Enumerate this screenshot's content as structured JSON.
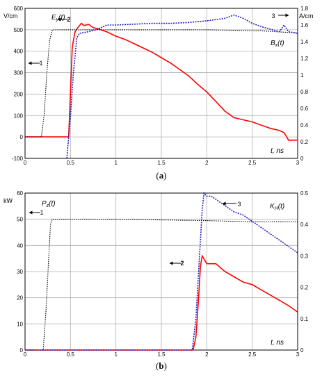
{
  "chart_data": [
    {
      "type": "line",
      "caption_open": "(",
      "caption_letter": "a",
      "caption_close": ")",
      "left_unit": "V/cm",
      "right_unit": "A/cm",
      "x_axis_text": "t, ns",
      "left_ylim": [
        -100,
        600
      ],
      "right_ylim": [
        0,
        1.8
      ],
      "xlim": [
        0,
        3
      ],
      "x_ticks": [
        "0",
        "0.5",
        "1",
        "1.5",
        "2",
        "2.5",
        "3"
      ],
      "left_ticks": [
        "600",
        "500",
        "400",
        "300",
        "200",
        "100",
        "0",
        "-100"
      ],
      "right_ticks": [
        "1.8",
        "1.6",
        "1.4",
        "1.2",
        "1",
        "0.8",
        "0.6",
        "0.4",
        "0.2",
        "0"
      ],
      "grid": true,
      "series": [
        {
          "name": "Ey(t)",
          "label_main": "E",
          "label_sub": "y",
          "label_tail": "(t)",
          "number": "2",
          "axis": "left",
          "style": "solid",
          "color": "#ff0000",
          "points": [
            [
              0,
              0
            ],
            [
              0.48,
              0
            ],
            [
              0.5,
              200
            ],
            [
              0.52,
              420
            ],
            [
              0.55,
              490
            ],
            [
              0.58,
              510
            ],
            [
              0.62,
              530
            ],
            [
              0.65,
              520
            ],
            [
              0.7,
              525
            ],
            [
              0.75,
              510
            ],
            [
              0.8,
              505
            ],
            [
              0.9,
              490
            ],
            [
              1.0,
              470
            ],
            [
              1.1,
              455
            ],
            [
              1.2,
              435
            ],
            [
              1.3,
              415
            ],
            [
              1.4,
              395
            ],
            [
              1.5,
              370
            ],
            [
              1.6,
              345
            ],
            [
              1.7,
              315
            ],
            [
              1.8,
              285
            ],
            [
              1.9,
              245
            ],
            [
              2.0,
              210
            ],
            [
              2.1,
              165
            ],
            [
              2.2,
              120
            ],
            [
              2.3,
              90
            ],
            [
              2.4,
              80
            ],
            [
              2.5,
              70
            ],
            [
              2.6,
              55
            ],
            [
              2.7,
              40
            ],
            [
              2.8,
              30
            ],
            [
              2.85,
              20
            ],
            [
              2.88,
              0
            ],
            [
              2.9,
              -15
            ],
            [
              3.0,
              -15
            ]
          ]
        },
        {
          "name": "1",
          "number": "1",
          "axis": "left",
          "style": "dotted-black",
          "color": "#000000",
          "points": [
            [
              0,
              0
            ],
            [
              0.18,
              0
            ],
            [
              0.21,
              100
            ],
            [
              0.24,
              300
            ],
            [
              0.27,
              450
            ],
            [
              0.3,
              500
            ],
            [
              1.0,
              500
            ],
            [
              2.0,
              500
            ],
            [
              2.6,
              495
            ],
            [
              3.0,
              485
            ]
          ]
        },
        {
          "name": "Bx(t)",
          "label_main": "B",
          "label_sub": "x",
          "label_tail": "(t)",
          "number": "3",
          "axis": "right",
          "style": "dotted-blue",
          "color": "#1f1fbf",
          "points": [
            [
              0.46,
              0
            ],
            [
              0.5,
              0.5
            ],
            [
              0.53,
              1.0
            ],
            [
              0.57,
              1.45
            ],
            [
              0.6,
              1.5
            ],
            [
              0.7,
              1.52
            ],
            [
              0.8,
              1.55
            ],
            [
              0.9,
              1.6
            ],
            [
              1.0,
              1.6
            ],
            [
              1.2,
              1.61
            ],
            [
              1.4,
              1.62
            ],
            [
              1.6,
              1.62
            ],
            [
              1.8,
              1.63
            ],
            [
              2.0,
              1.65
            ],
            [
              2.2,
              1.68
            ],
            [
              2.3,
              1.72
            ],
            [
              2.4,
              1.68
            ],
            [
              2.5,
              1.62
            ],
            [
              2.6,
              1.58
            ],
            [
              2.7,
              1.55
            ],
            [
              2.8,
              1.52
            ],
            [
              2.85,
              1.6
            ],
            [
              2.9,
              1.52
            ],
            [
              3.0,
              1.5
            ]
          ]
        }
      ]
    },
    {
      "type": "line",
      "caption_open": "(",
      "caption_letter": "b",
      "caption_close": ")",
      "left_unit": "kW",
      "right_unit": "",
      "x_axis_text": "t, ns",
      "left_ylim": [
        0,
        60
      ],
      "right_ylim": [
        0,
        0.5
      ],
      "xlim": [
        0,
        3
      ],
      "x_ticks": [
        "0",
        "0.5",
        "1",
        "1.5",
        "2",
        "2.5",
        "3"
      ],
      "left_ticks": [
        "60",
        "50",
        "40",
        "30",
        "20",
        "10",
        "0"
      ],
      "right_ticks": [
        "0.5",
        "0.4",
        "0.3",
        "0.2",
        "0.1",
        "0"
      ],
      "grid": true,
      "series": [
        {
          "name": "Pz(t)",
          "label_main": "P",
          "label_sub": "z",
          "label_tail": "(t)",
          "number": "2",
          "axis": "left",
          "style": "solid",
          "color": "#ff0000",
          "points": [
            [
              0,
              0
            ],
            [
              1.85,
              0
            ],
            [
              1.88,
              5
            ],
            [
              1.91,
              20
            ],
            [
              1.93,
              32
            ],
            [
              1.95,
              36
            ],
            [
              2.0,
              33
            ],
            [
              2.05,
              33
            ],
            [
              2.1,
              33
            ],
            [
              2.2,
              30
            ],
            [
              2.3,
              28
            ],
            [
              2.4,
              26
            ],
            [
              2.5,
              25
            ],
            [
              2.6,
              23
            ],
            [
              2.7,
              21
            ],
            [
              2.8,
              19
            ],
            [
              2.9,
              17
            ],
            [
              3.0,
              14.5
            ]
          ]
        },
        {
          "name": "1",
          "number": "1",
          "axis": "left",
          "style": "dotted-black",
          "color": "#000000",
          "points": [
            [
              0,
              0
            ],
            [
              0.2,
              0
            ],
            [
              0.23,
              15
            ],
            [
              0.26,
              35
            ],
            [
              0.28,
              48
            ],
            [
              0.3,
              50
            ],
            [
              1.0,
              50
            ],
            [
              2.0,
              49.5
            ],
            [
              2.5,
              49
            ],
            [
              3.0,
              49
            ]
          ]
        },
        {
          "name": "KH(t)",
          "label_main": "K",
          "label_sub": "H",
          "label_tail": "(t)",
          "number": "3",
          "axis": "right",
          "style": "dotted-blue",
          "color": "#1f1fbf",
          "points": [
            [
              0,
              0
            ],
            [
              1.84,
              0
            ],
            [
              1.88,
              0.1
            ],
            [
              1.92,
              0.3
            ],
            [
              1.95,
              0.45
            ],
            [
              1.97,
              0.5
            ],
            [
              2.0,
              0.49
            ],
            [
              2.05,
              0.49
            ],
            [
              2.1,
              0.48
            ],
            [
              2.2,
              0.46
            ],
            [
              2.3,
              0.44
            ],
            [
              2.4,
              0.43
            ],
            [
              2.5,
              0.41
            ],
            [
              2.6,
              0.39
            ],
            [
              2.7,
              0.37
            ],
            [
              2.8,
              0.35
            ],
            [
              2.9,
              0.33
            ],
            [
              3.0,
              0.31
            ]
          ]
        }
      ]
    }
  ]
}
